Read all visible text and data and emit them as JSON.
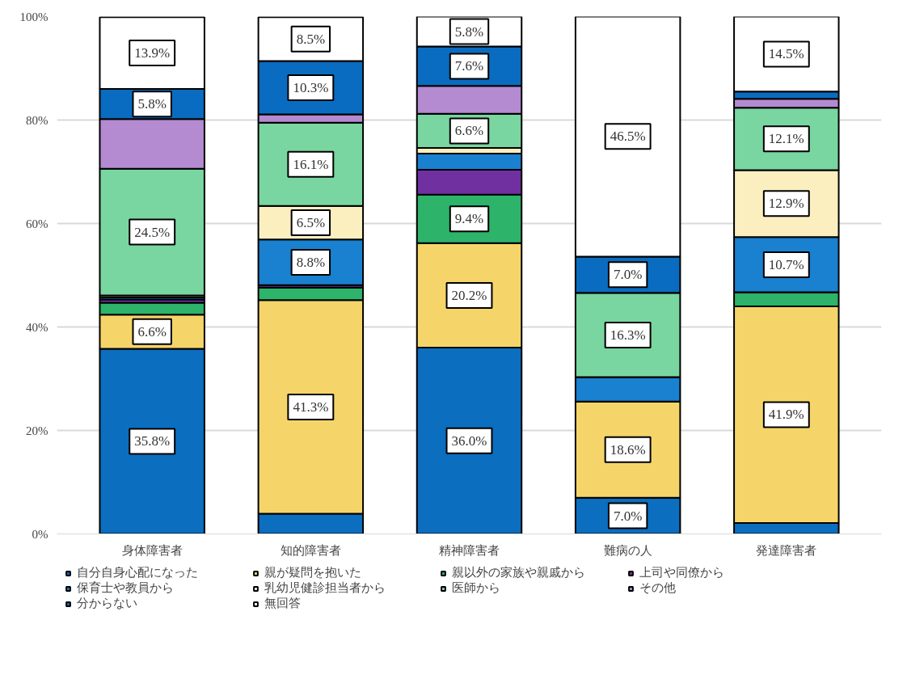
{
  "chart_data": {
    "type": "bar",
    "stacked": true,
    "categories": [
      "身体障害者",
      "知的障害者",
      "精神障害者",
      "難病の人",
      "発達障害者"
    ],
    "series": [
      {
        "name": "自分自身心配になった",
        "color": "#0b6ebf",
        "values": [
          35.8,
          3.9,
          36.0,
          7.0,
          2.1
        ],
        "value_labels": [
          "35.8%",
          null,
          "36.0%",
          "7.0%",
          null
        ]
      },
      {
        "name": "親が疑問を抱いた",
        "color": "#f5d56a",
        "values": [
          6.6,
          41.3,
          20.2,
          18.6,
          41.9
        ],
        "value_labels": [
          "6.6%",
          "41.3%",
          "20.2%",
          "18.6%",
          "41.9%"
        ]
      },
      {
        "name": "親以外の家族や親戚から",
        "color": "#2db36a",
        "values": [
          2.3,
          2.4,
          9.4,
          0,
          2.7
        ],
        "value_labels": [
          null,
          null,
          "9.4%",
          null,
          null
        ]
      },
      {
        "name": "上司や同僚から",
        "color": "#7030a0",
        "values": [
          0.6,
          0.5,
          4.8,
          0,
          0
        ],
        "value_labels": [
          null,
          null,
          null,
          null,
          null
        ]
      },
      {
        "name": "保育士や教員から",
        "color": "#1a80d0",
        "values": [
          0.4,
          8.8,
          3.1,
          4.7,
          10.7
        ],
        "value_labels": [
          null,
          "8.8%",
          null,
          null,
          "10.7%"
        ]
      },
      {
        "name": "乳幼児健診担当者から",
        "color": "#fbefc0",
        "values": [
          0.4,
          6.5,
          1.1,
          0,
          12.9
        ],
        "value_labels": [
          null,
          "6.5%",
          null,
          null,
          "12.9%"
        ]
      },
      {
        "name": "医師から",
        "color": "#79d6a0",
        "values": [
          24.5,
          16.1,
          6.6,
          16.3,
          12.1
        ],
        "value_labels": [
          "24.5%",
          "16.1%",
          "6.6%",
          "16.3%",
          "12.1%"
        ]
      },
      {
        "name": "その他",
        "color": "#b48ad0",
        "values": [
          9.6,
          1.6,
          5.4,
          0,
          1.7
        ],
        "value_labels": [
          null,
          null,
          null,
          null,
          null
        ]
      },
      {
        "name": "分からない",
        "color": "#0a6cc0",
        "values": [
          5.8,
          10.3,
          7.6,
          7.0,
          1.4
        ],
        "value_labels": [
          "5.8%",
          "10.3%",
          "7.6%",
          "7.0%",
          null
        ]
      },
      {
        "name": "無回答",
        "color": "#ffffff",
        "values": [
          13.9,
          8.5,
          5.8,
          46.5,
          14.5
        ],
        "value_labels": [
          "13.9%",
          "8.5%",
          "5.8%",
          "46.5%",
          "14.5%"
        ]
      }
    ],
    "ylim": [
      0,
      100
    ],
    "yticks": [
      {
        "value": 0,
        "label": "0%"
      },
      {
        "value": 20,
        "label": "20%"
      },
      {
        "value": 40,
        "label": "40%"
      },
      {
        "value": 60,
        "label": "60%"
      },
      {
        "value": 80,
        "label": "80%"
      },
      {
        "value": 100,
        "label": "100%"
      }
    ],
    "grid": "y",
    "legend": "bottom"
  }
}
